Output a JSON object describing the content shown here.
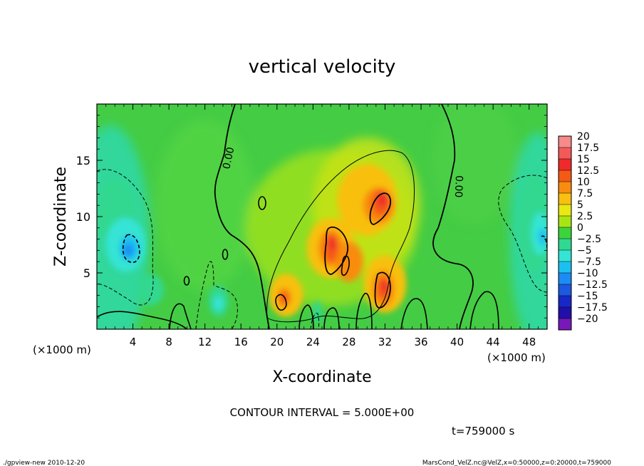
{
  "chart_data": {
    "type": "heatmap",
    "title": "vertical velocity",
    "xlabel": "X-coordinate",
    "ylabel": "Z-coordinate",
    "x_unit_label_left": "(×1000 m)",
    "x_unit_label_right": "(×1000 m)",
    "xlim": [
      0,
      50
    ],
    "ylim": [
      0,
      20
    ],
    "x_ticks": [
      4,
      8,
      12,
      16,
      20,
      24,
      28,
      32,
      36,
      40,
      44,
      48
    ],
    "y_ticks": [
      5,
      10,
      15
    ],
    "contour_label": "0.00",
    "contour_interval_text": "CONTOUR INTERVAL = 5.000E+00",
    "time_text": "t=759000 s",
    "colorbar": {
      "levels": [
        20,
        17.5,
        15,
        12.5,
        10,
        7.5,
        5,
        2.5,
        0,
        -2.5,
        -5,
        -7.5,
        -10,
        -12.5,
        -15,
        -17.5,
        -20
      ],
      "labels": [
        "20",
        "17.5",
        "15",
        "12.5",
        "10",
        "7.5",
        "5",
        "2.5",
        "0",
        "−2.5",
        "−5",
        "−7.5",
        "−10",
        "−12.5",
        "−15",
        "−17.5",
        "−20"
      ],
      "colors": [
        "#f78a8a",
        "#f25a5a",
        "#ee2a2a",
        "#f45a14",
        "#f88c10",
        "#f8c010",
        "#e8e812",
        "#a8e414",
        "#3cd43c",
        "#30d890",
        "#34e4d4",
        "#1cc0f0",
        "#1c8cf4",
        "#1c58e0",
        "#1828c8",
        "#2010a8",
        "#7818b8"
      ]
    },
    "features": {
      "updrafts": [
        {
          "x": 20.8,
          "z": 2.8,
          "peak": 10
        },
        {
          "x": 26.0,
          "z": 7.2,
          "peak": 12.5
        },
        {
          "x": 31.5,
          "z": 11.0,
          "peak": 12.5
        },
        {
          "x": 31.8,
          "z": 3.6,
          "peak": 12.5
        },
        {
          "x": 28.0,
          "z": 6.0,
          "peak": 7.5
        }
      ],
      "downdrafts": [
        {
          "x": 3.6,
          "z": 7.2,
          "peak": -12.5
        },
        {
          "x": 13.5,
          "z": 2.5,
          "peak": -7.5
        },
        {
          "x": 48.5,
          "z": 8.5,
          "peak": -12.5
        }
      ]
    }
  },
  "footer": {
    "left": "./gpview-new  2010-12-20",
    "right": "MarsCond_VelZ.nc@VelZ,x=0:50000,z=0:20000,t=759000"
  }
}
